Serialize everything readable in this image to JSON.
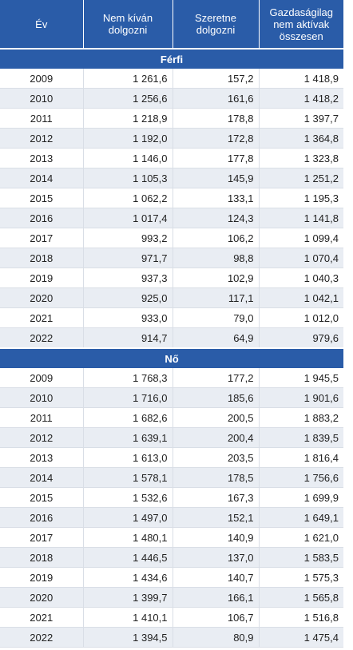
{
  "header": {
    "col_year": "Év",
    "col_nowork": "Nem kíván dolgozni",
    "col_wantwork": "Szeretne dolgozni",
    "col_total": "Gazdaságilag nem aktívak összesen"
  },
  "sections": [
    {
      "label": "Férfi",
      "rows": [
        {
          "year": "2009",
          "nowork": "1 261,6",
          "wantwork": "157,2",
          "total": "1 418,9"
        },
        {
          "year": "2010",
          "nowork": "1 256,6",
          "wantwork": "161,6",
          "total": "1 418,2"
        },
        {
          "year": "2011",
          "nowork": "1 218,9",
          "wantwork": "178,8",
          "total": "1 397,7"
        },
        {
          "year": "2012",
          "nowork": "1 192,0",
          "wantwork": "172,8",
          "total": "1 364,8"
        },
        {
          "year": "2013",
          "nowork": "1 146,0",
          "wantwork": "177,8",
          "total": "1 323,8"
        },
        {
          "year": "2014",
          "nowork": "1 105,3",
          "wantwork": "145,9",
          "total": "1 251,2"
        },
        {
          "year": "2015",
          "nowork": "1 062,2",
          "wantwork": "133,1",
          "total": "1 195,3"
        },
        {
          "year": "2016",
          "nowork": "1 017,4",
          "wantwork": "124,3",
          "total": "1 141,8"
        },
        {
          "year": "2017",
          "nowork": "993,2",
          "wantwork": "106,2",
          "total": "1 099,4"
        },
        {
          "year": "2018",
          "nowork": "971,7",
          "wantwork": "98,8",
          "total": "1 070,4"
        },
        {
          "year": "2019",
          "nowork": "937,3",
          "wantwork": "102,9",
          "total": "1 040,3"
        },
        {
          "year": "2020",
          "nowork": "925,0",
          "wantwork": "117,1",
          "total": "1 042,1"
        },
        {
          "year": "2021",
          "nowork": "933,0",
          "wantwork": "79,0",
          "total": "1 012,0"
        },
        {
          "year": "2022",
          "nowork": "914,7",
          "wantwork": "64,9",
          "total": "979,6"
        }
      ]
    },
    {
      "label": "Nő",
      "rows": [
        {
          "year": "2009",
          "nowork": "1 768,3",
          "wantwork": "177,2",
          "total": "1 945,5"
        },
        {
          "year": "2010",
          "nowork": "1 716,0",
          "wantwork": "185,6",
          "total": "1 901,6"
        },
        {
          "year": "2011",
          "nowork": "1 682,6",
          "wantwork": "200,5",
          "total": "1 883,2"
        },
        {
          "year": "2012",
          "nowork": "1 639,1",
          "wantwork": "200,4",
          "total": "1 839,5"
        },
        {
          "year": "2013",
          "nowork": "1 613,0",
          "wantwork": "203,5",
          "total": "1 816,4"
        },
        {
          "year": "2014",
          "nowork": "1 578,1",
          "wantwork": "178,5",
          "total": "1 756,6"
        },
        {
          "year": "2015",
          "nowork": "1 532,6",
          "wantwork": "167,3",
          "total": "1 699,9"
        },
        {
          "year": "2016",
          "nowork": "1 497,0",
          "wantwork": "152,1",
          "total": "1 649,1"
        },
        {
          "year": "2017",
          "nowork": "1 480,1",
          "wantwork": "140,9",
          "total": "1 621,0"
        },
        {
          "year": "2018",
          "nowork": "1 446,5",
          "wantwork": "137,0",
          "total": "1 583,5"
        },
        {
          "year": "2019",
          "nowork": "1 434,6",
          "wantwork": "140,7",
          "total": "1 575,3"
        },
        {
          "year": "2020",
          "nowork": "1 399,7",
          "wantwork": "166,1",
          "total": "1 565,8"
        },
        {
          "year": "2021",
          "nowork": "1 410,1",
          "wantwork": "106,7",
          "total": "1 516,8"
        },
        {
          "year": "2022",
          "nowork": "1 394,5",
          "wantwork": "80,9",
          "total": "1 475,4"
        }
      ]
    }
  ],
  "colors": {
    "header_bg": "#2a5ca8",
    "row_stripe": "#e9edf3"
  }
}
